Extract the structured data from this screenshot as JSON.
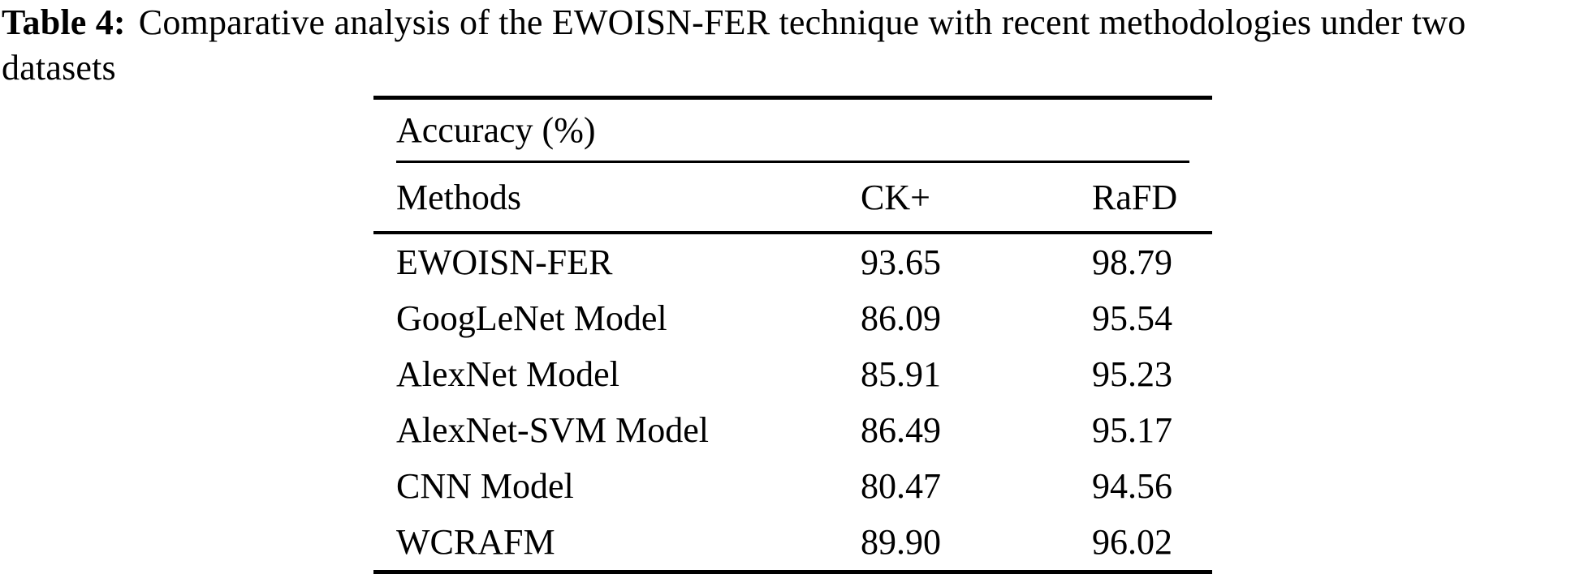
{
  "page": {
    "background": "#ffffff",
    "text_color": "#000000"
  },
  "caption": {
    "label": "Table 4:",
    "line1": "Comparative analysis of the EWOISN-FER technique with recent methodologies under two",
    "line2": "datasets"
  },
  "table": {
    "spanner": "Accuracy (%)",
    "columns": [
      "Methods",
      "CK+",
      "RaFD"
    ],
    "rows": [
      {
        "method": "EWOISN-FER",
        "ck": "93.65",
        "rafd": "98.79"
      },
      {
        "method": "GoogLeNet Model",
        "ck": "86.09",
        "rafd": "95.54"
      },
      {
        "method": "AlexNet Model",
        "ck": "85.91",
        "rafd": "95.23"
      },
      {
        "method": "AlexNet-SVM Model",
        "ck": "86.49",
        "rafd": "95.17"
      },
      {
        "method": "CNN Model",
        "ck": "80.47",
        "rafd": "94.56"
      },
      {
        "method": "WCRAFM",
        "ck": "89.90",
        "rafd": "96.02"
      }
    ]
  }
}
